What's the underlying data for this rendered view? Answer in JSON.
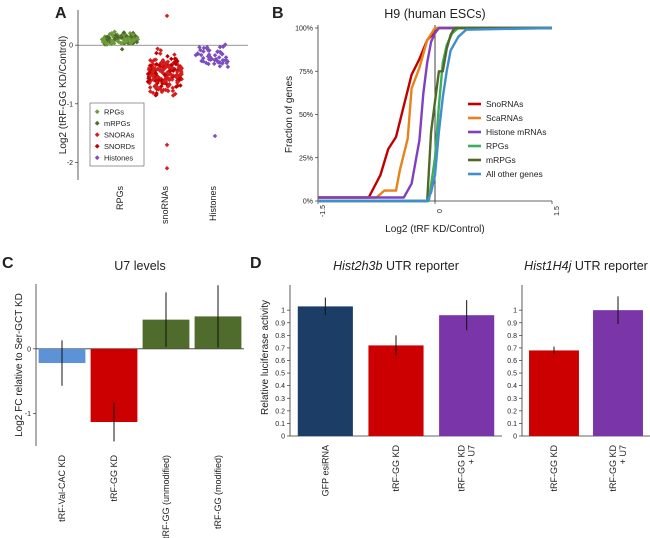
{
  "colors": {
    "rpgs": "#6f9a3a",
    "mrpgs": "#4e6b2b",
    "snoras": "#d41f1f",
    "snords": "#c00000",
    "histones": "#7b4fc0",
    "scarnas": "#e8821c",
    "histone_mrnas": "#8040c0",
    "rpgs_line": "#3fae5a",
    "mrpgs_line": "#4f6a28",
    "all_other": "#3f8fcf",
    "blue_bar": "#5d93d6",
    "red_bar": "#cc0000",
    "green_bar": "#506c2c",
    "navy_bar": "#1c3d66",
    "purple_bar": "#7a35a8"
  },
  "panels": {
    "A": {
      "label": "A"
    },
    "B": {
      "label": "B"
    },
    "C": {
      "label": "C"
    },
    "D": {
      "label": "D"
    }
  },
  "chart_data": [
    {
      "id": "A",
      "type": "scatter",
      "title": "",
      "ylabel": "Log2 (tRF-GG KD/Control)",
      "ylim": [
        -2.3,
        0.6
      ],
      "yticks": [
        0,
        -1,
        -2
      ],
      "ytick_labels": [
        "0",
        "-1",
        "-2"
      ],
      "categories": [
        "RPGs",
        "snoRNAs",
        "Histones"
      ],
      "legend": [
        {
          "label": "RPGs",
          "color": "#6f9a3a"
        },
        {
          "label": "mRPGs",
          "color": "#4e6b2b"
        },
        {
          "label": "SNORAs",
          "color": "#d41f1f"
        },
        {
          "label": "SNORDs",
          "color": "#c00000"
        },
        {
          "label": "Histones",
          "color": "#7b4fc0"
        }
      ],
      "groups": [
        {
          "name": "RPGs",
          "center": 0.1,
          "spread": 0.1,
          "count": 110,
          "outliers": []
        },
        {
          "name": "snoRNAs",
          "center": -0.5,
          "spread": 0.32,
          "count": 200,
          "outliers": [
            0.5,
            -2.1,
            -1.7
          ]
        },
        {
          "name": "Histones",
          "center": -0.2,
          "spread": 0.2,
          "count": 50,
          "outliers": [
            -1.55
          ]
        }
      ]
    },
    {
      "id": "B",
      "type": "line",
      "title": "H9 (human ESCs)",
      "xlabel": "Log2 (tRF KD/Control)",
      "ylabel": "Fraction of genes",
      "xlim": [
        -1.5,
        1.5
      ],
      "ylim": [
        0,
        1
      ],
      "xticks": [
        -1.5,
        0,
        1.5
      ],
      "xtick_labels": [
        "-1.5",
        "0",
        "1.5"
      ],
      "yticks": [
        0,
        0.25,
        0.5,
        0.75,
        1
      ],
      "ytick_labels": [
        "0%",
        "25%",
        "50%",
        "75%",
        "100%"
      ],
      "series": [
        {
          "name": "SnoRNAs",
          "color": "#c00000",
          "x": [
            -1.5,
            -0.85,
            -0.7,
            -0.6,
            -0.5,
            -0.4,
            -0.3,
            -0.2,
            -0.1,
            0.05,
            1.5
          ],
          "y": [
            0.02,
            0.02,
            0.15,
            0.3,
            0.37,
            0.55,
            0.73,
            0.82,
            0.93,
            1.0,
            1.0
          ]
        },
        {
          "name": "ScaRNAs",
          "color": "#e8821c",
          "x": [
            -1.5,
            -0.75,
            -0.65,
            -0.5,
            -0.45,
            -0.35,
            -0.3,
            -0.2,
            -0.1,
            0.0,
            1.5
          ],
          "y": [
            0.02,
            0.02,
            0.06,
            0.06,
            0.18,
            0.36,
            0.65,
            0.77,
            0.93,
            1.0,
            1.0
          ]
        },
        {
          "name": "Histone mRNAs",
          "color": "#8040c0",
          "x": [
            -1.5,
            -0.4,
            -0.3,
            -0.2,
            -0.15,
            -0.1,
            -0.05,
            0.0,
            0.05,
            1.5
          ],
          "y": [
            0.02,
            0.02,
            0.1,
            0.35,
            0.62,
            0.8,
            0.92,
            0.97,
            1.0,
            1.0
          ]
        },
        {
          "name": "RPGs",
          "color": "#3fae5a",
          "x": [
            -1.5,
            -0.08,
            0.0,
            0.05,
            0.1,
            0.15,
            0.22,
            0.3,
            1.5
          ],
          "y": [
            0.0,
            0.0,
            0.25,
            0.55,
            0.8,
            0.9,
            0.97,
            1.0,
            1.0
          ]
        },
        {
          "name": "mRPGs",
          "color": "#4f6a28",
          "x": [
            -1.5,
            -0.1,
            -0.05,
            0.05,
            0.1,
            0.15,
            0.2,
            0.25,
            1.5
          ],
          "y": [
            0.0,
            0.0,
            0.4,
            0.75,
            0.75,
            0.88,
            0.96,
            1.0,
            1.0
          ]
        },
        {
          "name": "All other genes",
          "color": "#3f8fcf",
          "x": [
            -1.5,
            -0.1,
            -0.05,
            0.0,
            0.05,
            0.1,
            0.15,
            0.2,
            0.3,
            0.4,
            1.5
          ],
          "y": [
            0.0,
            0.0,
            0.05,
            0.15,
            0.4,
            0.6,
            0.75,
            0.87,
            0.95,
            0.99,
            1.0
          ]
        }
      ]
    },
    {
      "id": "C",
      "type": "bar",
      "title": "U7 levels",
      "ylabel": "Log2 FC relative to Ser-GCT KD",
      "ylim": [
        -1.5,
        1.0
      ],
      "yticks": [
        -1,
        0
      ],
      "ytick_labels": [
        "-1",
        "0"
      ],
      "categories": [
        "tRF-Val-CAC KD",
        "tRF-GG KD",
        "tRF-GG (unmodified)",
        "tRF-GG (modified)"
      ],
      "values": [
        -0.22,
        -1.13,
        0.45,
        0.5
      ],
      "errors": [
        0.35,
        0.3,
        0.42,
        0.48
      ],
      "colors": [
        "#5d93d6",
        "#cc0000",
        "#506c2c",
        "#506c2c"
      ]
    },
    {
      "id": "D1",
      "type": "bar",
      "title_italic": "Hist2h3b",
      "title_rest": " UTR reporter",
      "ylabel": "Relative luciferase activity",
      "ylim": [
        0,
        1.2
      ],
      "yticks": [
        0,
        0.1,
        0.2,
        0.3,
        0.4,
        0.5,
        0.6,
        0.7,
        0.8,
        0.9,
        1
      ],
      "ytick_labels": [
        "0",
        "0.1",
        "0.2",
        "0.3",
        "0.4",
        "0.5",
        "0.6",
        "0.7",
        "0.8",
        "0.9",
        "1"
      ],
      "categories": [
        "GFP esiRNA",
        "tRF-GG KD",
        "tRF-GG KD\n+ U7"
      ],
      "values": [
        1.03,
        0.72,
        0.96
      ],
      "errors": [
        0.07,
        0.08,
        0.12
      ],
      "colors": [
        "#1c3d66",
        "#cc0000",
        "#7a35a8"
      ]
    },
    {
      "id": "D2",
      "type": "bar",
      "title_italic": "Hist1H4j",
      "title_rest": " UTR reporter",
      "ylim": [
        0,
        1.2
      ],
      "yticks": [
        0,
        0.1,
        0.2,
        0.3,
        0.4,
        0.5,
        0.6,
        0.7,
        0.8,
        0.9,
        1
      ],
      "ytick_labels": [
        "0",
        "0.1",
        "0.2",
        "0.3",
        "0.4",
        "0.5",
        "0.6",
        "0.7",
        "0.8",
        "0.9",
        "1"
      ],
      "categories": [
        "tRF-GG KD",
        "tRF-GG KD\n+ U7"
      ],
      "values": [
        0.68,
        1.0
      ],
      "errors": [
        0.03,
        0.11
      ],
      "colors": [
        "#cc0000",
        "#7a35a8"
      ]
    }
  ]
}
